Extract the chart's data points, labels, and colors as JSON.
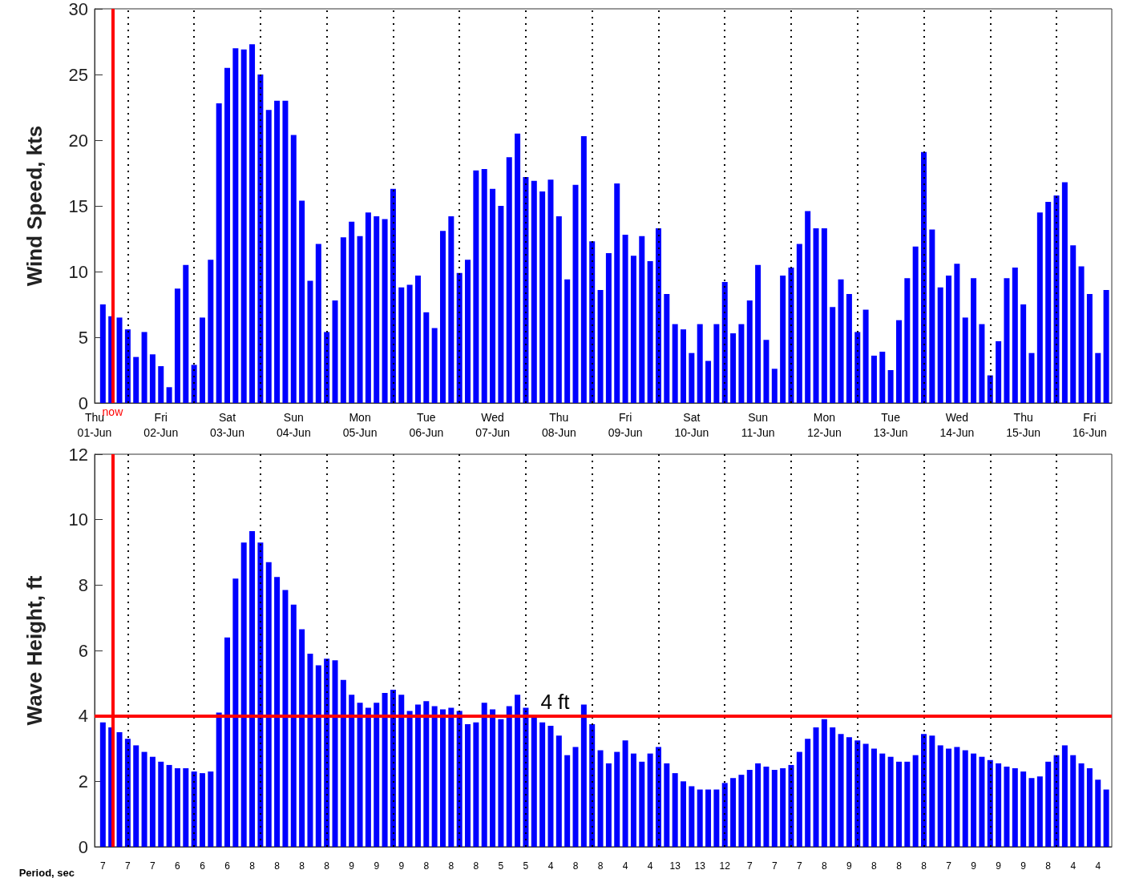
{
  "chart_data": [
    {
      "type": "bar",
      "ylabel": "Wind Speed, kts",
      "color": "#0000ff",
      "x": [
        "--06-01T15:00",
        "--06-01T18:00",
        "--06-01T21:00",
        "--06-02T00:00",
        "--06-02T03:00",
        "--06-02T06:00",
        "--06-02T09:00",
        "--06-02T12:00",
        "--06-02T15:00",
        "--06-02T18:00",
        "--06-02T21:00",
        "--06-03T00:00",
        "--06-03T03:00",
        "--06-03T06:00",
        "--06-03T09:00",
        "--06-03T12:00",
        "--06-03T15:00",
        "--06-03T18:00",
        "--06-03T21:00",
        "--06-04T00:00",
        "--06-04T03:00",
        "--06-04T06:00",
        "--06-04T09:00",
        "--06-04T12:00",
        "--06-04T15:00",
        "--06-04T18:00",
        "--06-04T21:00",
        "--06-05T00:00",
        "--06-05T03:00",
        "--06-05T06:00",
        "--06-05T09:00",
        "--06-05T12:00",
        "--06-05T15:00",
        "--06-05T18:00",
        "--06-05T21:00",
        "--06-06T00:00",
        "--06-06T03:00",
        "--06-06T06:00",
        "--06-06T09:00",
        "--06-06T12:00",
        "--06-06T15:00",
        "--06-06T18:00",
        "--06-06T21:00",
        "--06-07T00:00",
        "--06-07T03:00",
        "--06-07T06:00",
        "--06-07T09:00",
        "--06-07T12:00",
        "--06-07T15:00",
        "--06-07T18:00",
        "--06-07T21:00",
        "--06-08T00:00",
        "--06-08T03:00",
        "--06-08T06:00",
        "--06-08T09:00",
        "--06-08T12:00",
        "--06-08T15:00",
        "--06-08T18:00",
        "--06-08T21:00",
        "--06-09T00:00",
        "--06-09T03:00",
        "--06-09T06:00",
        "--06-09T09:00",
        "--06-09T12:00",
        "--06-09T15:00",
        "--06-09T18:00",
        "--06-09T21:00",
        "--06-10T00:00",
        "--06-10T03:00",
        "--06-10T06:00",
        "--06-10T09:00",
        "--06-10T12:00",
        "--06-10T15:00",
        "--06-10T18:00",
        "--06-10T21:00",
        "--06-11T00:00",
        "--06-11T03:00",
        "--06-11T06:00",
        "--06-11T09:00",
        "--06-11T12:00",
        "--06-11T15:00",
        "--06-11T18:00",
        "--06-11T21:00",
        "--06-12T00:00",
        "--06-12T03:00",
        "--06-12T06:00",
        "--06-12T09:00",
        "--06-12T12:00",
        "--06-12T15:00",
        "--06-12T18:00",
        "--06-12T21:00",
        "--06-13T00:00",
        "--06-13T03:00",
        "--06-13T06:00",
        "--06-13T09:00",
        "--06-13T12:00",
        "--06-13T15:00",
        "--06-13T18:00",
        "--06-13T21:00",
        "--06-14T00:00",
        "--06-14T03:00",
        "--06-14T06:00",
        "--06-14T09:00",
        "--06-14T12:00",
        "--06-14T15:00",
        "--06-14T18:00",
        "--06-14T21:00",
        "--06-15T00:00",
        "--06-15T03:00",
        "--06-15T06:00",
        "--06-15T09:00",
        "--06-15T12:00",
        "--06-15T15:00",
        "--06-15T18:00",
        "--06-15T21:00",
        "--06-16T00:00",
        "--06-16T03:00",
        "--06-16T06:00",
        "--06-16T09:00",
        "--06-16T12:00",
        "--06-16T15:00",
        "--06-16T18:00"
      ],
      "values": [
        7.5,
        6.6,
        6.5,
        5.6,
        3.5,
        5.4,
        3.7,
        2.8,
        1.2,
        8.7,
        10.5,
        2.9,
        6.5,
        10.9,
        22.8,
        25.5,
        27.0,
        26.9,
        27.3,
        25.0,
        22.3,
        23.0,
        23.0,
        20.4,
        15.4,
        9.3,
        12.1,
        5.4,
        7.8,
        12.6,
        13.8,
        12.7,
        14.5,
        14.2,
        14.0,
        16.3,
        8.8,
        9.0,
        9.7,
        6.9,
        5.7,
        13.1,
        14.2,
        9.9,
        10.9,
        17.7,
        17.8,
        16.3,
        15.0,
        18.7,
        20.5,
        17.2,
        16.9,
        16.1,
        17.0,
        14.2,
        9.4,
        16.6,
        20.3,
        12.3,
        8.6,
        11.4,
        16.7,
        12.8,
        11.2,
        12.7,
        10.8,
        13.3,
        8.3,
        6.0,
        5.6,
        3.8,
        6.0,
        3.2,
        6.0,
        9.2,
        5.3,
        6.0,
        7.8,
        10.5,
        4.8,
        2.6,
        9.7,
        10.3,
        12.1,
        14.6,
        13.3,
        13.3,
        7.3,
        9.4,
        8.3,
        5.4,
        7.1,
        3.6,
        3.9,
        2.5,
        6.3,
        9.5,
        11.9,
        19.1,
        13.2,
        8.8,
        9.7,
        10.6,
        6.5,
        9.5,
        6.0,
        2.1,
        4.7,
        9.5,
        10.3,
        7.5,
        3.8,
        14.5,
        15.3,
        15.8,
        16.8,
        12.0,
        10.4,
        8.3,
        3.8,
        8.6
      ],
      "xlim": [
        "--06-01T12:00",
        "--06-16T20:00"
      ],
      "xticks": [
        {
          "value": "--06-01T12:00",
          "label": "Thu\n01-Jun"
        },
        {
          "value": "--06-02T12:00",
          "label": "Fri\n02-Jun"
        },
        {
          "value": "--06-03T12:00",
          "label": "Sat\n03-Jun"
        },
        {
          "value": "--06-04T12:00",
          "label": "Sun\n04-Jun"
        },
        {
          "value": "--06-05T12:00",
          "label": "Mon\n05-Jun"
        },
        {
          "value": "--06-06T12:00",
          "label": "Tue\n06-Jun"
        },
        {
          "value": "--06-07T12:00",
          "label": "Wed\n07-Jun"
        },
        {
          "value": "--06-08T12:00",
          "label": "Thu\n08-Jun"
        },
        {
          "value": "--06-09T12:00",
          "label": "Fri\n09-Jun"
        },
        {
          "value": "--06-10T12:00",
          "label": "Sat\n10-Jun"
        },
        {
          "value": "--06-11T12:00",
          "label": "Sun\n11-Jun"
        },
        {
          "value": "--06-12T12:00",
          "label": "Mon\n12-Jun"
        },
        {
          "value": "--06-13T12:00",
          "label": "Tue\n13-Jun"
        },
        {
          "value": "--06-14T12:00",
          "label": "Wed\n14-Jun"
        },
        {
          "value": "--06-15T12:00",
          "label": "Thu\n15-Jun"
        },
        {
          "value": "--06-16T12:00",
          "label": "Fri\n16-Jun"
        }
      ],
      "ylim": [
        0,
        30
      ],
      "yticks": [
        0,
        5,
        10,
        15,
        20,
        25,
        30
      ],
      "ref_lines": [
        {
          "axis": "x",
          "value": "--06-02T00:00",
          "label": null,
          "color": "#000000",
          "line_style": "dotted"
        },
        {
          "axis": "x",
          "value": "--06-03T00:00",
          "label": null,
          "color": "#000000",
          "line_style": "dotted"
        },
        {
          "axis": "x",
          "value": "--06-04T00:00",
          "label": null,
          "color": "#000000",
          "line_style": "dotted"
        },
        {
          "axis": "x",
          "value": "--06-05T00:00",
          "label": null,
          "color": "#000000",
          "line_style": "dotted"
        },
        {
          "axis": "x",
          "value": "--06-06T00:00",
          "label": null,
          "color": "#000000",
          "line_style": "dotted"
        },
        {
          "axis": "x",
          "value": "--06-07T00:00",
          "label": null,
          "color": "#000000",
          "line_style": "dotted"
        },
        {
          "axis": "x",
          "value": "--06-08T00:00",
          "label": null,
          "color": "#000000",
          "line_style": "dotted"
        },
        {
          "axis": "x",
          "value": "--06-09T00:00",
          "label": null,
          "color": "#000000",
          "line_style": "dotted"
        },
        {
          "axis": "x",
          "value": "--06-10T00:00",
          "label": null,
          "color": "#000000",
          "line_style": "dotted"
        },
        {
          "axis": "x",
          "value": "--06-11T00:00",
          "label": null,
          "color": "#000000",
          "line_style": "dotted"
        },
        {
          "axis": "x",
          "value": "--06-12T00:00",
          "label": null,
          "color": "#000000",
          "line_style": "dotted"
        },
        {
          "axis": "x",
          "value": "--06-13T00:00",
          "label": null,
          "color": "#000000",
          "line_style": "dotted"
        },
        {
          "axis": "x",
          "value": "--06-14T00:00",
          "label": null,
          "color": "#000000",
          "line_style": "dotted"
        },
        {
          "axis": "x",
          "value": "--06-15T00:00",
          "label": null,
          "color": "#000000",
          "line_style": "dotted"
        },
        {
          "axis": "x",
          "value": "--06-16T00:00",
          "label": null,
          "color": "#000000",
          "line_style": "dotted"
        },
        {
          "axis": "x",
          "value": "--06-01T18:30",
          "label": "now",
          "color": "#ff0000",
          "line_style": "solid"
        }
      ]
    },
    {
      "type": "bar",
      "ylabel": "Wave Height, ft",
      "xlabel": "Period, sec",
      "color": "#0000ff",
      "x": [
        "--06-01T15:00",
        "--06-01T18:00",
        "--06-01T21:00",
        "--06-02T00:00",
        "--06-02T03:00",
        "--06-02T06:00",
        "--06-02T09:00",
        "--06-02T12:00",
        "--06-02T15:00",
        "--06-02T18:00",
        "--06-02T21:00",
        "--06-03T00:00",
        "--06-03T03:00",
        "--06-03T06:00",
        "--06-03T09:00",
        "--06-03T12:00",
        "--06-03T15:00",
        "--06-03T18:00",
        "--06-03T21:00",
        "--06-04T00:00",
        "--06-04T03:00",
        "--06-04T06:00",
        "--06-04T09:00",
        "--06-04T12:00",
        "--06-04T15:00",
        "--06-04T18:00",
        "--06-04T21:00",
        "--06-05T00:00",
        "--06-05T03:00",
        "--06-05T06:00",
        "--06-05T09:00",
        "--06-05T12:00",
        "--06-05T15:00",
        "--06-05T18:00",
        "--06-05T21:00",
        "--06-06T00:00",
        "--06-06T03:00",
        "--06-06T06:00",
        "--06-06T09:00",
        "--06-06T12:00",
        "--06-06T15:00",
        "--06-06T18:00",
        "--06-06T21:00",
        "--06-07T00:00",
        "--06-07T03:00",
        "--06-07T06:00",
        "--06-07T09:00",
        "--06-07T12:00",
        "--06-07T15:00",
        "--06-07T18:00",
        "--06-07T21:00",
        "--06-08T00:00",
        "--06-08T03:00",
        "--06-08T06:00",
        "--06-08T09:00",
        "--06-08T12:00",
        "--06-08T15:00",
        "--06-08T18:00",
        "--06-08T21:00",
        "--06-09T00:00",
        "--06-09T03:00",
        "--06-09T06:00",
        "--06-09T09:00",
        "--06-09T12:00",
        "--06-09T15:00",
        "--06-09T18:00",
        "--06-09T21:00",
        "--06-10T00:00",
        "--06-10T03:00",
        "--06-10T06:00",
        "--06-10T09:00",
        "--06-10T12:00",
        "--06-10T15:00",
        "--06-10T18:00",
        "--06-10T21:00",
        "--06-11T00:00",
        "--06-11T03:00",
        "--06-11T06:00",
        "--06-11T09:00",
        "--06-11T12:00",
        "--06-11T15:00",
        "--06-11T18:00",
        "--06-11T21:00",
        "--06-12T00:00",
        "--06-12T03:00",
        "--06-12T06:00",
        "--06-12T09:00",
        "--06-12T12:00",
        "--06-12T15:00",
        "--06-12T18:00",
        "--06-12T21:00",
        "--06-13T00:00",
        "--06-13T03:00",
        "--06-13T06:00",
        "--06-13T09:00",
        "--06-13T12:00",
        "--06-13T15:00",
        "--06-13T18:00",
        "--06-13T21:00",
        "--06-14T00:00",
        "--06-14T03:00",
        "--06-14T06:00",
        "--06-14T09:00",
        "--06-14T12:00",
        "--06-14T15:00",
        "--06-14T18:00",
        "--06-14T21:00",
        "--06-15T00:00",
        "--06-15T03:00",
        "--06-15T06:00",
        "--06-15T09:00",
        "--06-15T12:00",
        "--06-15T15:00",
        "--06-15T18:00",
        "--06-15T21:00",
        "--06-16T00:00",
        "--06-16T03:00",
        "--06-16T06:00",
        "--06-16T09:00",
        "--06-16T12:00",
        "--06-16T15:00",
        "--06-16T18:00"
      ],
      "values": [
        3.8,
        3.65,
        3.5,
        3.3,
        3.1,
        2.9,
        2.75,
        2.6,
        2.5,
        2.4,
        2.4,
        2.3,
        2.25,
        2.3,
        4.1,
        6.4,
        8.2,
        9.3,
        9.65,
        9.3,
        8.7,
        8.25,
        7.85,
        7.4,
        6.65,
        5.9,
        5.55,
        5.75,
        5.7,
        5.1,
        4.65,
        4.4,
        4.25,
        4.4,
        4.7,
        4.8,
        4.65,
        4.15,
        4.35,
        4.45,
        4.3,
        4.2,
        4.25,
        4.15,
        3.75,
        3.8,
        4.4,
        4.2,
        3.9,
        4.3,
        4.65,
        4.25,
        3.95,
        3.8,
        3.7,
        3.4,
        2.8,
        3.05,
        4.35,
        3.75,
        2.95,
        2.55,
        2.9,
        3.25,
        2.85,
        2.6,
        2.85,
        3.05,
        2.55,
        2.25,
        2.0,
        1.85,
        1.75,
        1.75,
        1.75,
        1.95,
        2.1,
        2.2,
        2.35,
        2.55,
        2.45,
        2.35,
        2.4,
        2.5,
        2.9,
        3.3,
        3.65,
        3.9,
        3.65,
        3.45,
        3.35,
        3.25,
        3.15,
        3.0,
        2.85,
        2.75,
        2.6,
        2.6,
        2.8,
        3.45,
        3.4,
        3.1,
        3.0,
        3.05,
        2.95,
        2.85,
        2.75,
        2.65,
        2.55,
        2.45,
        2.4,
        2.3,
        2.1,
        2.15,
        2.6,
        2.8,
        3.1,
        2.8,
        2.55,
        2.4,
        2.05,
        1.75
      ],
      "xlim": [
        "--06-01T12:00",
        "--06-16T20:00"
      ],
      "xticks": [
        {
          "value": "--06-01T15:00",
          "label": "7"
        },
        {
          "value": "--06-02T00:00",
          "label": "7"
        },
        {
          "value": "--06-02T09:00",
          "label": "7"
        },
        {
          "value": "--06-02T18:00",
          "label": "6"
        },
        {
          "value": "--06-03T03:00",
          "label": "6"
        },
        {
          "value": "--06-03T12:00",
          "label": "6"
        },
        {
          "value": "--06-03T21:00",
          "label": "8"
        },
        {
          "value": "--06-04T06:00",
          "label": "8"
        },
        {
          "value": "--06-04T15:00",
          "label": "8"
        },
        {
          "value": "--06-05T00:00",
          "label": "8"
        },
        {
          "value": "--06-05T09:00",
          "label": "9"
        },
        {
          "value": "--06-05T18:00",
          "label": "9"
        },
        {
          "value": "--06-06T03:00",
          "label": "9"
        },
        {
          "value": "--06-06T12:00",
          "label": "8"
        },
        {
          "value": "--06-06T21:00",
          "label": "8"
        },
        {
          "value": "--06-07T06:00",
          "label": "8"
        },
        {
          "value": "--06-07T15:00",
          "label": "5"
        },
        {
          "value": "--06-08T00:00",
          "label": "5"
        },
        {
          "value": "--06-08T09:00",
          "label": "4"
        },
        {
          "value": "--06-08T18:00",
          "label": "8"
        },
        {
          "value": "--06-09T03:00",
          "label": "8"
        },
        {
          "value": "--06-09T12:00",
          "label": "4"
        },
        {
          "value": "--06-09T21:00",
          "label": "4"
        },
        {
          "value": "--06-10T06:00",
          "label": "13"
        },
        {
          "value": "--06-10T15:00",
          "label": "13"
        },
        {
          "value": "--06-11T00:00",
          "label": "12"
        },
        {
          "value": "--06-11T09:00",
          "label": "7"
        },
        {
          "value": "--06-11T18:00",
          "label": "7"
        },
        {
          "value": "--06-12T03:00",
          "label": "7"
        },
        {
          "value": "--06-12T12:00",
          "label": "8"
        },
        {
          "value": "--06-12T21:00",
          "label": "9"
        },
        {
          "value": "--06-13T06:00",
          "label": "8"
        },
        {
          "value": "--06-13T15:00",
          "label": "8"
        },
        {
          "value": "--06-14T00:00",
          "label": "8"
        },
        {
          "value": "--06-14T09:00",
          "label": "7"
        },
        {
          "value": "--06-14T18:00",
          "label": "9"
        },
        {
          "value": "--06-15T03:00",
          "label": "9"
        },
        {
          "value": "--06-15T12:00",
          "label": "9"
        },
        {
          "value": "--06-15T21:00",
          "label": "8"
        },
        {
          "value": "--06-16T06:00",
          "label": "4"
        },
        {
          "value": "--06-16T15:00",
          "label": "4"
        }
      ],
      "ylim": [
        0,
        12
      ],
      "yticks": [
        0,
        2,
        4,
        6,
        8,
        10,
        12
      ],
      "ref_lines": [
        {
          "axis": "x",
          "value": "--06-02T00:00",
          "label": null,
          "color": "#000000",
          "line_style": "dotted"
        },
        {
          "axis": "x",
          "value": "--06-03T00:00",
          "label": null,
          "color": "#000000",
          "line_style": "dotted"
        },
        {
          "axis": "x",
          "value": "--06-04T00:00",
          "label": null,
          "color": "#000000",
          "line_style": "dotted"
        },
        {
          "axis": "x",
          "value": "--06-05T00:00",
          "label": null,
          "color": "#000000",
          "line_style": "dotted"
        },
        {
          "axis": "x",
          "value": "--06-06T00:00",
          "label": null,
          "color": "#000000",
          "line_style": "dotted"
        },
        {
          "axis": "x",
          "value": "--06-07T00:00",
          "label": null,
          "color": "#000000",
          "line_style": "dotted"
        },
        {
          "axis": "x",
          "value": "--06-08T00:00",
          "label": null,
          "color": "#000000",
          "line_style": "dotted"
        },
        {
          "axis": "x",
          "value": "--06-09T00:00",
          "label": null,
          "color": "#000000",
          "line_style": "dotted"
        },
        {
          "axis": "x",
          "value": "--06-10T00:00",
          "label": null,
          "color": "#000000",
          "line_style": "dotted"
        },
        {
          "axis": "x",
          "value": "--06-11T00:00",
          "label": null,
          "color": "#000000",
          "line_style": "dotted"
        },
        {
          "axis": "x",
          "value": "--06-12T00:00",
          "label": null,
          "color": "#000000",
          "line_style": "dotted"
        },
        {
          "axis": "x",
          "value": "--06-13T00:00",
          "label": null,
          "color": "#000000",
          "line_style": "dotted"
        },
        {
          "axis": "x",
          "value": "--06-14T00:00",
          "label": null,
          "color": "#000000",
          "line_style": "dotted"
        },
        {
          "axis": "x",
          "value": "--06-15T00:00",
          "label": null,
          "color": "#000000",
          "line_style": "dotted"
        },
        {
          "axis": "x",
          "value": "--06-16T00:00",
          "label": null,
          "color": "#000000",
          "line_style": "dotted"
        },
        {
          "axis": "x",
          "value": "--06-01T18:30",
          "label": null,
          "color": "#ff0000",
          "line_style": "solid"
        },
        {
          "axis": "y",
          "value": 4,
          "label": "4 ft",
          "color": "#ff0000",
          "line_style": "solid"
        }
      ]
    }
  ]
}
